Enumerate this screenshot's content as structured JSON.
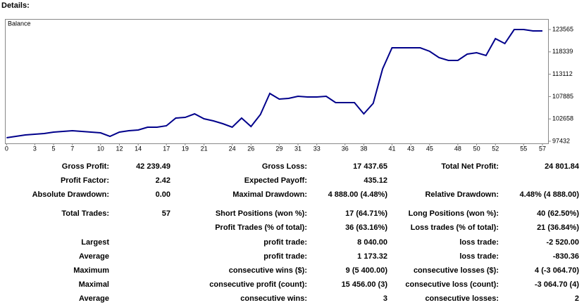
{
  "header": {
    "title": "Details:"
  },
  "chart_data": {
    "type": "line",
    "x": [
      0,
      1,
      2,
      3,
      4,
      5,
      6,
      7,
      8,
      9,
      10,
      11,
      12,
      13,
      14,
      15,
      16,
      17,
      18,
      19,
      20,
      21,
      22,
      23,
      24,
      25,
      26,
      27,
      28,
      29,
      30,
      31,
      32,
      33,
      34,
      35,
      36,
      37,
      38,
      39,
      40,
      41,
      42,
      43,
      44,
      45,
      46,
      47,
      48,
      49,
      50,
      51,
      52,
      53,
      54,
      55,
      56,
      57
    ],
    "series": [
      {
        "name": "Balance",
        "color": "#00008b",
        "values": [
          98250,
          98580,
          98910,
          99080,
          99240,
          99570,
          99730,
          99900,
          99730,
          99570,
          99400,
          98580,
          99570,
          99900,
          100060,
          100720,
          100720,
          101050,
          102860,
          103020,
          103840,
          102690,
          102200,
          101540,
          100720,
          102860,
          100880,
          103680,
          108610,
          107290,
          107460,
          107950,
          107790,
          107790,
          107950,
          106470,
          106470,
          106470,
          103840,
          106310,
          114360,
          119290,
          119290,
          119290,
          119290,
          118470,
          116990,
          116340,
          116340,
          117810,
          118140,
          117490,
          121430,
          120280,
          123560,
          123560,
          123240,
          123240
        ]
      }
    ],
    "xlim": [
      -0.1,
      57.6
    ],
    "ylim": [
      96939,
      125866
    ],
    "xticks": [
      0,
      3,
      5,
      7,
      10,
      12,
      14,
      17,
      19,
      21,
      24,
      26,
      29,
      31,
      33,
      36,
      38,
      41,
      43,
      45,
      48,
      50,
      52,
      55,
      57
    ],
    "yticks": [
      97432,
      102658,
      107885,
      113112,
      118339,
      123565
    ],
    "grid": false
  },
  "table": {
    "rows": [
      [
        "Gross Profit:",
        "42 239.49",
        "Gross Loss:",
        "17 437.65",
        "Total Net Profit:",
        "24 801.84"
      ],
      [
        "Profit Factor:",
        "2.42",
        "Expected Payoff:",
        "435.12",
        null,
        null
      ],
      [
        "Absolute Drawdown:",
        "0.00",
        "Maximal Drawdown:",
        "4 888.00 (4.48%)",
        "Relative Drawdown:",
        "4.48% (4 888.00)"
      ],
      [
        "Total Trades:",
        "57",
        "Short Positions (won %):",
        "17 (64.71%)",
        "Long Positions (won %):",
        "40 (62.50%)"
      ],
      [
        null,
        null,
        "Profit Trades (% of total):",
        "36 (63.16%)",
        "Loss trades (% of total):",
        "21 (36.84%)"
      ],
      [
        "Largest",
        null,
        "profit trade:",
        "8 040.00",
        "loss trade:",
        "-2 520.00"
      ],
      [
        "Average",
        null,
        "profit trade:",
        "1 173.32",
        "loss trade:",
        "-830.36"
      ],
      [
        "Maximum",
        null,
        "consecutive wins ($):",
        "9 (5 400.00)",
        "consecutive losses ($):",
        "4 (-3 064.70)"
      ],
      [
        "Maximal",
        null,
        "consecutive profit (count):",
        "15 456.00 (3)",
        "consecutive loss (count):",
        "-3 064.70 (4)"
      ],
      [
        "Average",
        null,
        "consecutive wins:",
        "3",
        "consecutive losses:",
        "2"
      ]
    ]
  }
}
